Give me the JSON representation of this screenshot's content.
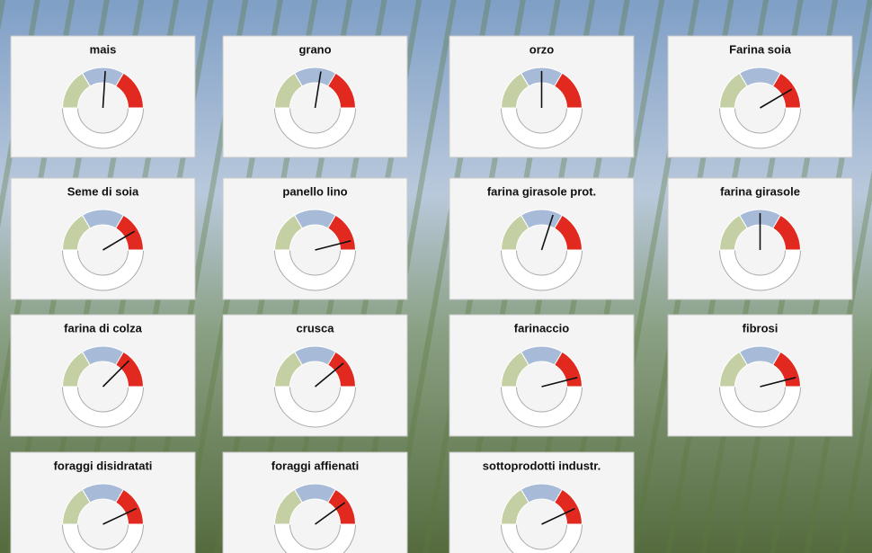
{
  "bands": [
    {
      "from": 0,
      "to": 33,
      "color": "#c4d0a4"
    },
    {
      "from": 33,
      "to": 67,
      "color": "#a7bbd8"
    },
    {
      "from": 67,
      "to": 100,
      "color": "#e2291f"
    }
  ],
  "chart_data": [
    {
      "type": "gauge",
      "title": "mais",
      "value": 52,
      "ylim": [
        0,
        100
      ]
    },
    {
      "type": "gauge",
      "title": "grano",
      "value": 55,
      "ylim": [
        0,
        100
      ]
    },
    {
      "type": "gauge",
      "title": "orzo",
      "value": 50,
      "ylim": [
        0,
        100
      ]
    },
    {
      "type": "gauge",
      "title": "Farina soia",
      "value": 83,
      "ylim": [
        0,
        100
      ]
    },
    {
      "type": "gauge",
      "title": "Seme di soia",
      "value": 83,
      "ylim": [
        0,
        100
      ]
    },
    {
      "type": "gauge",
      "title": "panello lino",
      "value": 92,
      "ylim": [
        0,
        100
      ]
    },
    {
      "type": "gauge",
      "title": "farina girasole prot.",
      "value": 60,
      "ylim": [
        0,
        100
      ]
    },
    {
      "type": "gauge",
      "title": "farina girasole",
      "value": 50,
      "ylim": [
        0,
        100
      ]
    },
    {
      "type": "gauge",
      "title": "farina di colza",
      "value": 75,
      "ylim": [
        0,
        100
      ]
    },
    {
      "type": "gauge",
      "title": "crusca",
      "value": 78,
      "ylim": [
        0,
        100
      ]
    },
    {
      "type": "gauge",
      "title": "farinaccio",
      "value": 92,
      "ylim": [
        0,
        100
      ]
    },
    {
      "type": "gauge",
      "title": "fibrosi",
      "value": 92,
      "ylim": [
        0,
        100
      ]
    },
    {
      "type": "gauge",
      "title": "foraggi disidratati",
      "value": 86,
      "ylim": [
        0,
        100
      ]
    },
    {
      "type": "gauge",
      "title": "foraggi affienati",
      "value": 80,
      "ylim": [
        0,
        100
      ]
    },
    {
      "type": "gauge",
      "title": "sottoprodotti industr.",
      "value": 86,
      "ylim": [
        0,
        100
      ]
    }
  ]
}
